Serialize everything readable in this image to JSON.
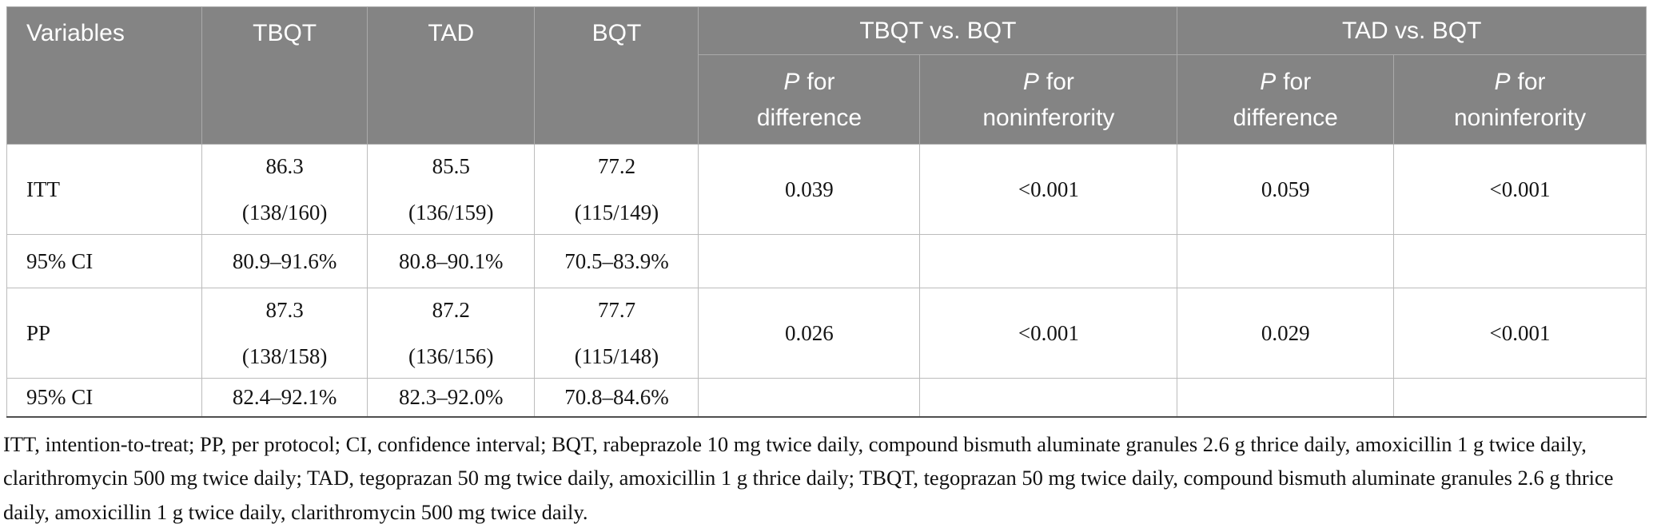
{
  "table": {
    "columns": {
      "variables": "Variables",
      "tbqt": "TBQT",
      "tad": "TAD",
      "bqt": "BQT",
      "tbqt_vs_bqt": "TBQT vs. BQT",
      "tad_vs_bqt": "TAD vs. BQT"
    },
    "subheaders": [
      {
        "p": "P",
        "rest": "for",
        "line2": "difference"
      },
      {
        "p": "P",
        "rest": "for",
        "line2": "noninferority"
      },
      {
        "p": "P",
        "rest": "for",
        "line2": "difference"
      },
      {
        "p": "P",
        "rest": "for",
        "line2": "noninferority"
      }
    ],
    "rows": [
      {
        "label": "ITT",
        "tbqt": [
          "86.3",
          "(138/160)"
        ],
        "tad": [
          "85.5",
          "(136/159)"
        ],
        "bqt": [
          "77.2",
          "(115/149)"
        ],
        "p_diff_tbqt": "0.039",
        "p_noninf_tbqt": "<0.001",
        "p_diff_tad": "0.059",
        "p_noninf_tad": "<0.001"
      },
      {
        "label": "95% CI",
        "tbqt": [
          "80.9–91.6%"
        ],
        "tad": [
          "80.8–90.1%"
        ],
        "bqt": [
          "70.5–83.9%"
        ],
        "p_diff_tbqt": "",
        "p_noninf_tbqt": "",
        "p_diff_tad": "",
        "p_noninf_tad": ""
      },
      {
        "label": "PP",
        "tbqt": [
          "87.3",
          "(138/158)"
        ],
        "tad": [
          "87.2",
          "(136/156)"
        ],
        "bqt": [
          "77.7",
          "(115/148)"
        ],
        "p_diff_tbqt": "0.026",
        "p_noninf_tbqt": "<0.001",
        "p_diff_tad": "0.029",
        "p_noninf_tad": "<0.001"
      },
      {
        "label": "95% CI",
        "tbqt": [
          "82.4–92.1%"
        ],
        "tad": [
          "82.3–92.0%"
        ],
        "bqt": [
          "70.8–84.6%"
        ],
        "p_diff_tbqt": "",
        "p_noninf_tbqt": "",
        "p_diff_tad": "",
        "p_noninf_tad": ""
      }
    ]
  },
  "colors": {
    "header_bg": "#848484",
    "header_text": "#ffffff",
    "grid_line": "#bcbcbc",
    "bottom_rule": "#4f4f4f"
  },
  "footnote": "ITT, intention-to-treat; PP, per protocol; CI, confidence interval; BQT, rabeprazole 10 mg twice daily, compound bismuth aluminate granules 2.6 g thrice daily, amoxicillin 1 g twice daily, clarithromycin 500 mg twice daily; TAD, tegoprazan 50 mg twice daily, amoxicillin 1 g thrice daily; TBQT, tegoprazan 50 mg twice daily, compound bismuth aluminate granules 2.6 g thrice daily, amoxicillin 1 g twice daily, clarithromycin 500 mg twice daily."
}
